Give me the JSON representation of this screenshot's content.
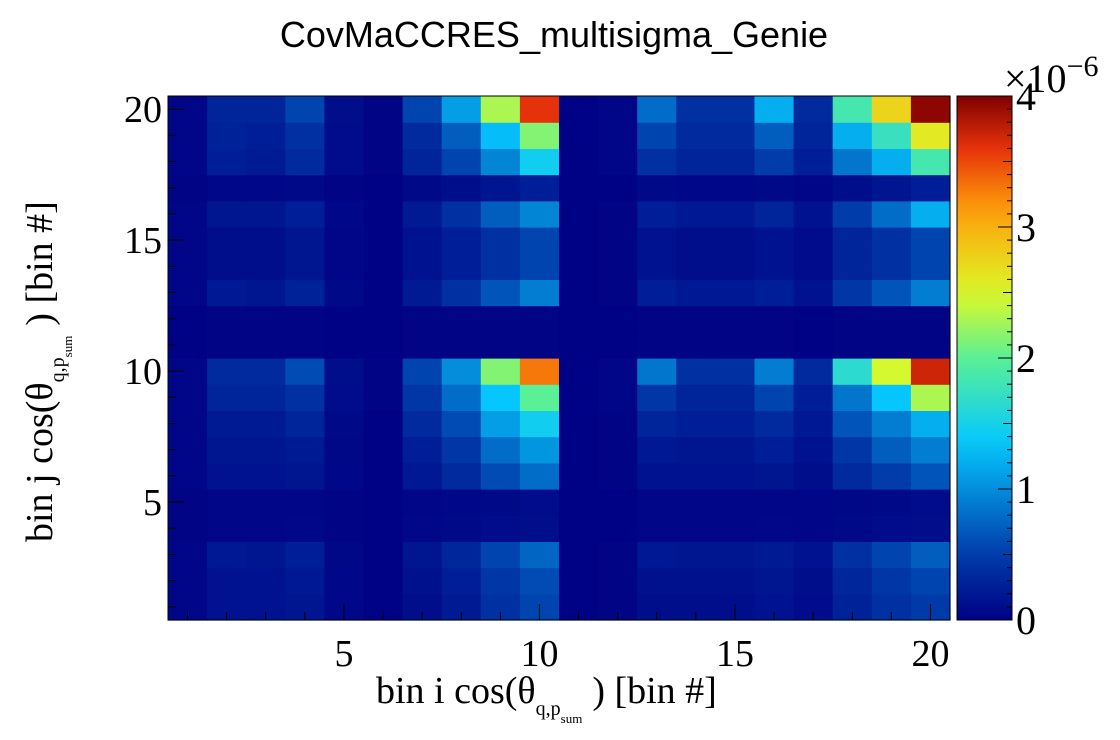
{
  "chart_data": {
    "type": "heatmap",
    "title": "CovMaCCRES_multisigma_Genie",
    "xlabel": {
      "pre": "bin i cos(θ",
      "sub_vec": "q,p",
      "sub_tail": "sum",
      "post": ") [bin #]"
    },
    "ylabel": {
      "pre": "bin j cos(θ",
      "sub_vec": "q,p",
      "sub_tail": "sum",
      "post": ") [bin #]"
    },
    "xlim": [
      0.5,
      20.5
    ],
    "ylim": [
      0.5,
      20.5
    ],
    "xticks": [
      5,
      10,
      15,
      20
    ],
    "yticks": [
      5,
      10,
      15,
      20
    ],
    "colorbar": {
      "min": 0,
      "max": 4,
      "ticks": [
        0,
        1,
        2,
        3,
        4
      ],
      "exponent_label": "×10",
      "exponent_power": "−6",
      "colormap": "jet"
    },
    "x_bins": [
      1,
      2,
      3,
      4,
      5,
      6,
      7,
      8,
      9,
      10,
      11,
      12,
      13,
      14,
      15,
      16,
      17,
      18,
      19,
      20
    ],
    "y_bins": [
      1,
      2,
      3,
      4,
      5,
      6,
      7,
      8,
      9,
      10,
      11,
      12,
      13,
      14,
      15,
      16,
      17,
      18,
      19,
      20
    ],
    "values_note": "rows ordered bottom (j=1) to top (j=20), units of 1e-6",
    "values": [
      [
        0.05,
        0.15,
        0.15,
        0.18,
        0.06,
        0.02,
        0.12,
        0.22,
        0.4,
        0.55,
        0.02,
        0.03,
        0.12,
        0.12,
        0.12,
        0.15,
        0.1,
        0.28,
        0.4,
        0.48
      ],
      [
        0.05,
        0.15,
        0.15,
        0.2,
        0.06,
        0.02,
        0.14,
        0.25,
        0.45,
        0.6,
        0.02,
        0.03,
        0.14,
        0.14,
        0.14,
        0.18,
        0.12,
        0.32,
        0.45,
        0.55
      ],
      [
        0.05,
        0.2,
        0.18,
        0.25,
        0.07,
        0.02,
        0.18,
        0.32,
        0.55,
        0.75,
        0.02,
        0.03,
        0.2,
        0.18,
        0.18,
        0.22,
        0.15,
        0.4,
        0.55,
        0.7
      ],
      [
        0.03,
        0.05,
        0.05,
        0.06,
        0.03,
        0.02,
        0.06,
        0.08,
        0.1,
        0.12,
        0.02,
        0.02,
        0.05,
        0.05,
        0.05,
        0.06,
        0.05,
        0.08,
        0.1,
        0.12
      ],
      [
        0.03,
        0.05,
        0.05,
        0.05,
        0.03,
        0.02,
        0.05,
        0.06,
        0.08,
        0.1,
        0.02,
        0.02,
        0.05,
        0.05,
        0.05,
        0.05,
        0.05,
        0.07,
        0.08,
        0.1
      ],
      [
        0.05,
        0.15,
        0.15,
        0.18,
        0.06,
        0.02,
        0.2,
        0.35,
        0.6,
        0.8,
        0.02,
        0.03,
        0.15,
        0.15,
        0.15,
        0.18,
        0.12,
        0.35,
        0.5,
        0.65
      ],
      [
        0.05,
        0.18,
        0.18,
        0.22,
        0.07,
        0.02,
        0.25,
        0.45,
        0.8,
        1.05,
        0.02,
        0.03,
        0.2,
        0.18,
        0.18,
        0.25,
        0.15,
        0.45,
        0.7,
        0.9
      ],
      [
        0.05,
        0.22,
        0.22,
        0.3,
        0.08,
        0.02,
        0.35,
        0.6,
        1.1,
        1.45,
        0.02,
        0.03,
        0.3,
        0.25,
        0.25,
        0.35,
        0.2,
        0.65,
        0.9,
        1.2
      ],
      [
        0.05,
        0.3,
        0.3,
        0.4,
        0.1,
        0.03,
        0.45,
        0.8,
        1.35,
        2.0,
        0.02,
        0.05,
        0.45,
        0.3,
        0.3,
        0.55,
        0.25,
        0.85,
        1.35,
        2.3
      ],
      [
        0.05,
        0.35,
        0.35,
        0.6,
        0.12,
        0.03,
        0.55,
        1.0,
        2.15,
        3.3,
        0.02,
        0.05,
        0.85,
        0.4,
        0.4,
        0.9,
        0.35,
        1.65,
        2.45,
        3.7
      ],
      [
        0.02,
        0.03,
        0.03,
        0.03,
        0.02,
        0.02,
        0.03,
        0.03,
        0.03,
        0.03,
        0.02,
        0.02,
        0.03,
        0.03,
        0.03,
        0.03,
        0.02,
        0.03,
        0.03,
        0.03
      ],
      [
        0.02,
        0.03,
        0.03,
        0.03,
        0.02,
        0.02,
        0.03,
        0.03,
        0.03,
        0.03,
        0.02,
        0.02,
        0.03,
        0.03,
        0.03,
        0.03,
        0.02,
        0.03,
        0.03,
        0.03
      ],
      [
        0.05,
        0.2,
        0.18,
        0.28,
        0.08,
        0.02,
        0.22,
        0.4,
        0.65,
        0.9,
        0.02,
        0.03,
        0.25,
        0.2,
        0.2,
        0.25,
        0.15,
        0.45,
        0.65,
        0.9
      ],
      [
        0.05,
        0.12,
        0.12,
        0.18,
        0.05,
        0.02,
        0.15,
        0.25,
        0.4,
        0.55,
        0.02,
        0.03,
        0.15,
        0.12,
        0.12,
        0.15,
        0.1,
        0.3,
        0.4,
        0.55
      ],
      [
        0.05,
        0.12,
        0.12,
        0.18,
        0.05,
        0.02,
        0.15,
        0.25,
        0.4,
        0.55,
        0.02,
        0.03,
        0.15,
        0.12,
        0.12,
        0.15,
        0.1,
        0.3,
        0.4,
        0.55
      ],
      [
        0.05,
        0.18,
        0.18,
        0.25,
        0.06,
        0.02,
        0.22,
        0.4,
        0.7,
        0.95,
        0.02,
        0.03,
        0.25,
        0.2,
        0.2,
        0.3,
        0.15,
        0.5,
        0.8,
        1.2
      ],
      [
        0.03,
        0.06,
        0.06,
        0.08,
        0.03,
        0.02,
        0.08,
        0.12,
        0.18,
        0.25,
        0.02,
        0.02,
        0.08,
        0.06,
        0.06,
        0.08,
        0.05,
        0.12,
        0.18,
        0.25
      ],
      [
        0.05,
        0.25,
        0.22,
        0.35,
        0.1,
        0.03,
        0.3,
        0.55,
        0.95,
        1.45,
        0.02,
        0.05,
        0.4,
        0.3,
        0.3,
        0.5,
        0.25,
        0.85,
        1.2,
        1.85
      ],
      [
        0.05,
        0.28,
        0.25,
        0.4,
        0.1,
        0.03,
        0.35,
        0.7,
        1.3,
        2.15,
        0.02,
        0.05,
        0.55,
        0.35,
        0.35,
        0.7,
        0.3,
        1.2,
        1.75,
        2.6
      ],
      [
        0.05,
        0.3,
        0.3,
        0.55,
        0.12,
        0.03,
        0.55,
        1.1,
        2.3,
        3.6,
        0.02,
        0.05,
        0.8,
        0.4,
        0.4,
        1.2,
        0.35,
        1.85,
        2.75,
        3.95
      ]
    ]
  }
}
